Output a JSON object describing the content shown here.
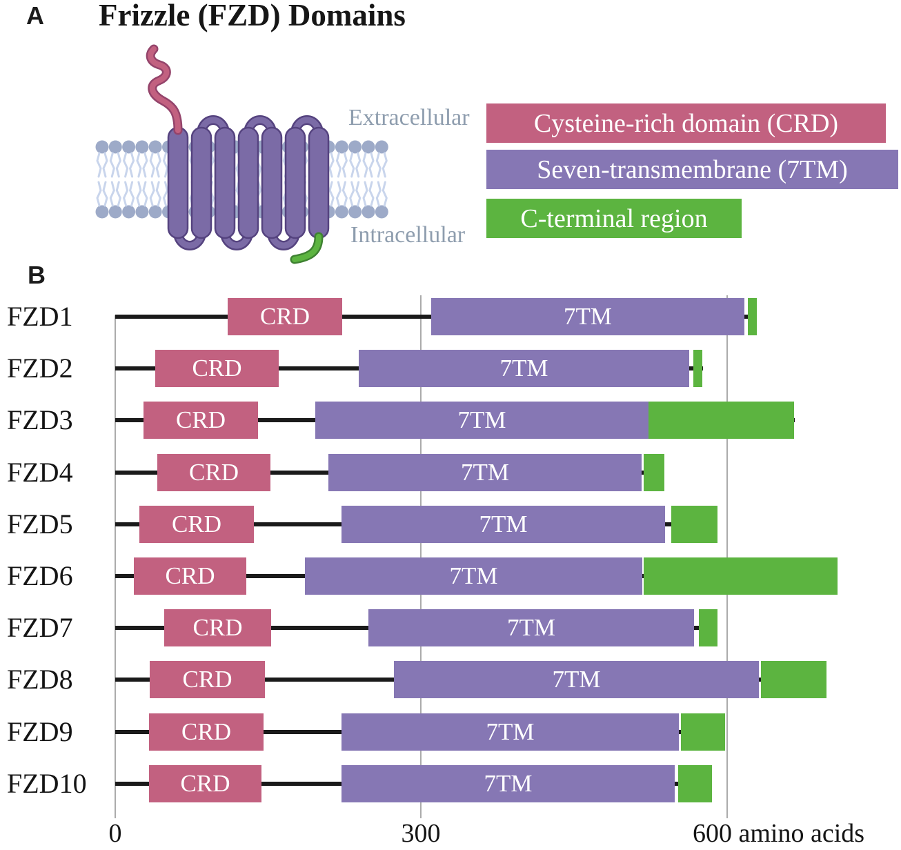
{
  "figure": {
    "panel_a_label": "A",
    "panel_b_label": "B",
    "title": "Frizzle (FZD) Domains",
    "extracellular": "Extracellular",
    "intracellular": "Intracellular"
  },
  "legend": {
    "items": [
      {
        "key": "crd",
        "label": "Cysteine-rich domain (CRD)"
      },
      {
        "key": "tm",
        "label": "Seven-transmembrane (7TM)"
      },
      {
        "key": "cterm",
        "label": "C-terminal region"
      }
    ]
  },
  "colors": {
    "crd": "#C26180",
    "crd_dark": "#94446B",
    "tm": "#8677B4",
    "tm_dark": "#55437F",
    "helix": "#7B6BA6",
    "cterm": "#5CB440",
    "cterm_dark": "#3F8232",
    "lipid_head": "#9DAAC8",
    "lipid_tail": "#C9D5EC",
    "membrane_text": "#8E9DAE",
    "backbone": "#1A1A1A",
    "gridline": "#ABABAB"
  },
  "chart_data": {
    "type": "domain-diagram",
    "title": "Frizzle (FZD) Domains",
    "x_unit": "amino acids",
    "x_range": [
      0,
      770
    ],
    "x_ticks": [
      {
        "value": 0,
        "label": "0"
      },
      {
        "value": 300,
        "label": "300"
      },
      {
        "value": 600,
        "label": "600 amino acids"
      }
    ],
    "domain_labels": {
      "crd": "CRD",
      "tm": "7TM",
      "cterm": ""
    },
    "rows": [
      {
        "label": "FZD1",
        "crd": [
          110,
          222
        ],
        "tm": [
          310,
          617
        ],
        "cterm": [
          620,
          629
        ]
      },
      {
        "label": "FZD2",
        "crd": [
          39,
          160
        ],
        "tm": [
          239,
          563
        ],
        "cterm": [
          567,
          576
        ]
      },
      {
        "label": "FZD3",
        "crd": [
          28,
          140
        ],
        "tm": [
          196,
          523
        ],
        "cterm": [
          523,
          666
        ]
      },
      {
        "label": "FZD4",
        "crd": [
          41,
          152
        ],
        "tm": [
          209,
          516
        ],
        "cterm": [
          518,
          538
        ]
      },
      {
        "label": "FZD5",
        "crd": [
          24,
          136
        ],
        "tm": [
          222,
          539
        ],
        "cterm": [
          545,
          590
        ]
      },
      {
        "label": "FZD6",
        "crd": [
          18,
          128
        ],
        "tm": [
          186,
          517
        ],
        "cterm": [
          518,
          708
        ]
      },
      {
        "label": "FZD7",
        "crd": [
          48,
          153
        ],
        "tm": [
          248,
          567
        ],
        "cterm": [
          572,
          590
        ]
      },
      {
        "label": "FZD8",
        "crd": [
          34,
          147
        ],
        "tm": [
          273,
          631
        ],
        "cterm": [
          633,
          697
        ]
      },
      {
        "label": "FZD9",
        "crd": [
          33,
          145
        ],
        "tm": [
          222,
          553
        ],
        "cterm": [
          555,
          598
        ]
      },
      {
        "label": "FZD10",
        "crd": [
          33,
          143
        ],
        "tm": [
          222,
          549
        ],
        "cterm": [
          552,
          585
        ]
      }
    ]
  }
}
